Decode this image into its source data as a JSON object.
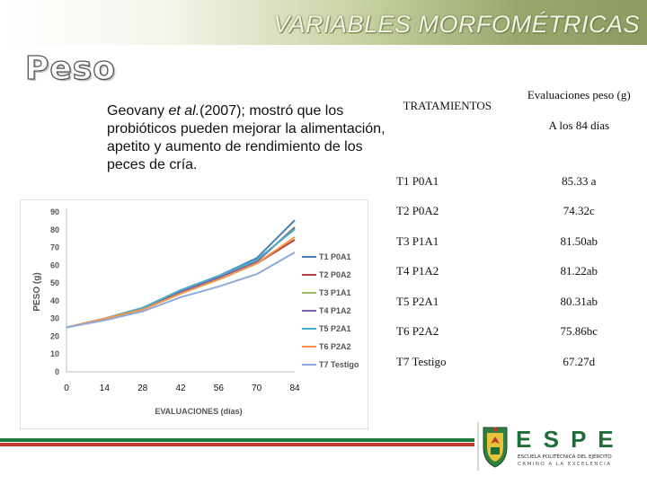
{
  "header": {
    "title": "VARIABLES MORFOMÉTRICAS"
  },
  "section": {
    "title": "Peso"
  },
  "intro": {
    "text_before": "Geovany ",
    "italic": "et al.",
    "text_after": "(2007); mostró que los probióticos pueden mejorar la alimentación, apetito y aumento de rendimiento de los peces de cría."
  },
  "table": {
    "col1_header": "TRATAMIENTOS",
    "col2_header": "Evaluaciones peso (g)",
    "col2_subheader": "A  los 84 días",
    "rows": [
      {
        "treatment": "T1 P0A1",
        "value": "85.33 a"
      },
      {
        "treatment": "T2 P0A2",
        "value": "74.32c"
      },
      {
        "treatment": "T3 P1A1",
        "value": "81.50ab"
      },
      {
        "treatment": "T4 P1A2",
        "value": "81.22ab"
      },
      {
        "treatment": "T5 P2A1",
        "value": "80.31ab"
      },
      {
        "treatment": "T6 P2A2",
        "value": "75.86bc"
      },
      {
        "treatment": "T7 Testigo",
        "value": "67.27d"
      }
    ]
  },
  "chart_data": {
    "type": "line",
    "x": [
      0,
      14,
      28,
      42,
      56,
      70,
      84
    ],
    "xlabel": "EVALUACIONES (días)",
    "ylabel": "PESO (g)",
    "ylim": [
      0,
      90
    ],
    "yticks": [
      0,
      10,
      20,
      30,
      40,
      50,
      60,
      70,
      80,
      90
    ],
    "grid": false,
    "legend": "right",
    "series": [
      {
        "name": "T1 P0A1",
        "color": "#4a7fb5",
        "values": [
          25,
          30,
          36,
          46,
          54,
          64,
          85.33
        ]
      },
      {
        "name": "T2 P0A2",
        "color": "#b04442",
        "values": [
          25,
          30,
          36,
          45,
          52,
          61,
          74.32
        ]
      },
      {
        "name": "T3 P1A1",
        "color": "#9bbb59",
        "values": [
          25,
          30,
          35,
          45,
          53,
          62,
          81.5
        ]
      },
      {
        "name": "T4 P1A2",
        "color": "#7b62a2",
        "values": [
          25,
          30,
          35,
          45,
          53,
          62,
          81.22
        ]
      },
      {
        "name": "T5 P2A1",
        "color": "#4bacc6",
        "values": [
          25,
          30,
          36,
          46,
          54,
          63,
          80.31
        ]
      },
      {
        "name": "T6 P2A2",
        "color": "#f79646",
        "values": [
          25,
          30,
          35,
          44,
          52,
          61,
          75.86
        ]
      },
      {
        "name": "T7 Testigo",
        "color": "#8faadc",
        "values": [
          25,
          29,
          34,
          42,
          48,
          55,
          67.27
        ]
      }
    ]
  },
  "logo": {
    "wordmark": "E S P E",
    "line1": "ESCUELA POLITÉCNICA DEL EJÉRCITO",
    "line2": "CAMINO A LA EXCELENCIA",
    "colors": {
      "green": "#1f6e3a",
      "gray": "#9a9a9a",
      "red": "#c0392b",
      "gold": "#e0b52a"
    }
  }
}
